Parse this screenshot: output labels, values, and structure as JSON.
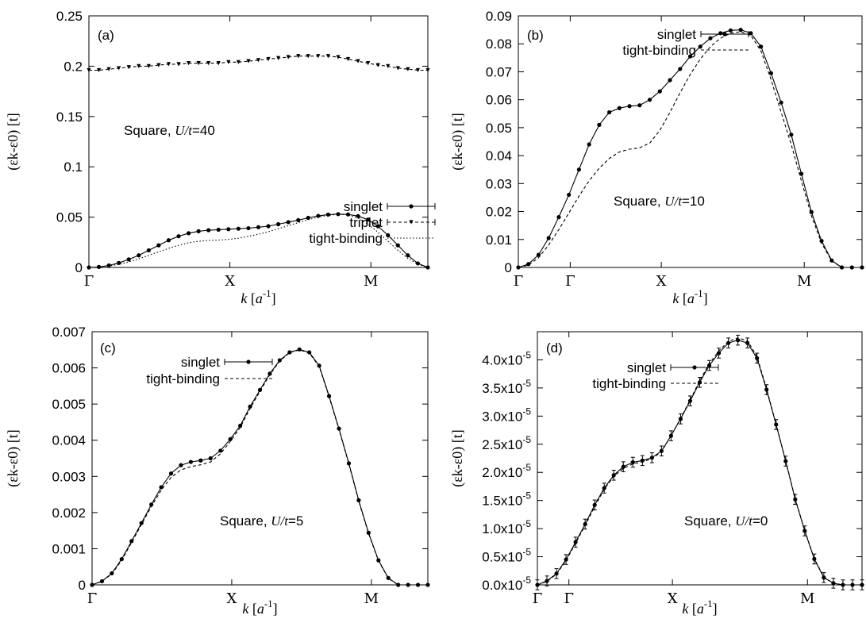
{
  "chart_data": [
    {
      "type": "line",
      "panel_label": "(a)",
      "annotation": "Square, U/t=40",
      "annotation_prefix": "Square, ",
      "annotation_var": "U/t",
      "annotation_val": "=40",
      "xlabel_var": "k",
      "xlabel_unit": "a",
      "xlabel_exp": "-1",
      "ylabel": "(εk-ε0) [t]",
      "x_ticks": [
        "Γ",
        "X",
        "M",
        "Γ"
      ],
      "y_ticks": [
        "0",
        "0.05",
        "0.1",
        "0.15",
        "0.2",
        "0.25"
      ],
      "ylim": [
        0,
        0.25
      ],
      "x": [
        0,
        0.0707,
        0.1414,
        0.2121,
        0.2828,
        0.3536,
        0.4243,
        0.495,
        0.5657,
        0.6364,
        0.7071,
        0.7778,
        0.8485,
        0.9192,
        0.9899,
        1.0607,
        1.1314,
        1.2021,
        1.2728,
        1.3435,
        1.4142,
        1.4849,
        1.5556,
        1.6263,
        1.697,
        1.7678,
        1.8385,
        1.9092,
        1.9799,
        2.0506,
        2.1213,
        2.192,
        2.2627,
        2.3335,
        2.4042
      ],
      "series": [
        {
          "name": "singlet",
          "style": "solid-circle",
          "values": [
            0.0,
            0.0005,
            0.002,
            0.0045,
            0.008,
            0.012,
            0.017,
            0.022,
            0.027,
            0.031,
            0.034,
            0.036,
            0.037,
            0.0375,
            0.038,
            0.0385,
            0.039,
            0.04,
            0.041,
            0.043,
            0.045,
            0.047,
            0.0493,
            0.0512,
            0.0525,
            0.053,
            0.0527,
            0.051,
            0.0475,
            0.041,
            0.032,
            0.022,
            0.012,
            0.004,
            0.0
          ]
        },
        {
          "name": "triplet",
          "style": "dashed-triangle",
          "values": [
            0.196,
            0.196,
            0.197,
            0.198,
            0.199,
            0.2,
            0.2,
            0.201,
            0.202,
            0.202,
            0.203,
            0.203,
            0.203,
            0.203,
            0.204,
            0.204,
            0.205,
            0.206,
            0.207,
            0.208,
            0.209,
            0.21,
            0.21,
            0.21,
            0.21,
            0.209,
            0.207,
            0.205,
            0.203,
            0.201,
            0.2,
            0.198,
            0.197,
            0.196,
            0.196
          ]
        },
        {
          "name": "tight-binding",
          "style": "dotted",
          "values": [
            0.0,
            0.0004,
            0.0015,
            0.003,
            0.0055,
            0.0085,
            0.012,
            0.0155,
            0.019,
            0.022,
            0.0245,
            0.026,
            0.0268,
            0.0272,
            0.0278,
            0.029,
            0.031,
            0.033,
            0.0355,
            0.0385,
            0.0415,
            0.0445,
            0.0475,
            0.05,
            0.0518,
            0.0528,
            0.0523,
            0.049,
            0.043,
            0.035,
            0.026,
            0.017,
            0.009,
            0.003,
            0.0
          ]
        }
      ]
    },
    {
      "type": "line",
      "panel_label": "(b)",
      "annotation": "Square, U/t=10",
      "annotation_prefix": "Square, ",
      "annotation_var": "U/t",
      "annotation_val": "=10",
      "xlabel_var": "k",
      "xlabel_unit": "a",
      "xlabel_exp": "-1",
      "ylabel": "(εk-ε0) [t]",
      "x_ticks": [
        "Γ",
        "X",
        "M",
        "Γ"
      ],
      "y_ticks": [
        "0",
        "0.01",
        "0.02",
        "0.03",
        "0.04",
        "0.05",
        "0.06",
        "0.07",
        "0.08",
        "0.09"
      ],
      "ylim": [
        0,
        0.09
      ],
      "x": [
        0,
        0.0707,
        0.1414,
        0.2121,
        0.2828,
        0.3536,
        0.4243,
        0.495,
        0.5657,
        0.6364,
        0.7071,
        0.7778,
        0.8485,
        0.9192,
        0.9899,
        1.0607,
        1.1314,
        1.2021,
        1.2728,
        1.3435,
        1.4142,
        1.4849,
        1.5556,
        1.6263,
        1.697,
        1.7678,
        1.8385,
        1.9092,
        1.9799,
        2.0506,
        2.1213,
        2.192,
        2.2627,
        2.3335,
        2.4042
      ],
      "series": [
        {
          "name": "singlet",
          "style": "solid-circle",
          "values": [
            0.0,
            0.0012,
            0.0045,
            0.0105,
            0.018,
            0.026,
            0.035,
            0.044,
            0.051,
            0.0555,
            0.057,
            0.0577,
            0.058,
            0.06,
            0.063,
            0.067,
            0.071,
            0.0755,
            0.079,
            0.082,
            0.0838,
            0.0848,
            0.085,
            0.0838,
            0.079,
            0.0695,
            0.059,
            0.0475,
            0.0335,
            0.0198,
            0.0095,
            0.0025,
            0.0,
            0.0,
            0.0
          ]
        },
        {
          "name": "tight-binding",
          "style": "dashed",
          "values": [
            0.0,
            0.0008,
            0.0035,
            0.008,
            0.0135,
            0.0195,
            0.0255,
            0.031,
            0.0355,
            0.039,
            0.0413,
            0.0423,
            0.0428,
            0.0445,
            0.049,
            0.0555,
            0.0625,
            0.069,
            0.0745,
            0.079,
            0.082,
            0.0838,
            0.0843,
            0.083,
            0.0775,
            0.0672,
            0.0555,
            0.044,
            0.031,
            0.0185,
            0.0087,
            0.0023,
            0.0,
            0.0,
            0.0
          ]
        }
      ]
    },
    {
      "type": "line",
      "panel_label": "(c)",
      "annotation": "Square, U/t=5",
      "annotation_prefix": "Square, ",
      "annotation_var": "U/t",
      "annotation_val": "=5",
      "xlabel_var": "k",
      "xlabel_unit": "a",
      "xlabel_exp": "-1",
      "ylabel": "(εk-ε0) [t]",
      "x_ticks": [
        "Γ",
        "X",
        "M",
        "Γ"
      ],
      "y_ticks": [
        "0",
        "0.001",
        "0.002",
        "0.003",
        "0.004",
        "0.005",
        "0.006",
        "0.007"
      ],
      "ylim": [
        0,
        0.007
      ],
      "x": [
        0,
        0.0707,
        0.1414,
        0.2121,
        0.2828,
        0.3536,
        0.4243,
        0.495,
        0.5657,
        0.6364,
        0.7071,
        0.7778,
        0.8485,
        0.9192,
        0.9899,
        1.0607,
        1.1314,
        1.2021,
        1.2728,
        1.3435,
        1.4142,
        1.4849,
        1.5556,
        1.6263,
        1.697,
        1.7678,
        1.8385,
        1.9092,
        1.9799,
        2.0506,
        2.1213,
        2.192,
        2.2627,
        2.3335,
        2.4042
      ],
      "series": [
        {
          "name": "singlet",
          "style": "solid-circle",
          "values": [
            0.0,
            0.0001,
            0.00032,
            0.00071,
            0.00121,
            0.00171,
            0.00222,
            0.0027,
            0.00308,
            0.00331,
            0.0034,
            0.00344,
            0.0035,
            0.00371,
            0.00403,
            0.0044,
            0.00493,
            0.00539,
            0.00584,
            0.00621,
            0.00643,
            0.00651,
            0.00643,
            0.00606,
            0.00522,
            0.00432,
            0.00336,
            0.00234,
            0.00144,
            0.00068,
            0.00019,
            0.0,
            0.0,
            0.0,
            0.0
          ]
        },
        {
          "name": "tight-binding",
          "style": "dashed",
          "values": [
            0.0,
            0.0001,
            0.0003,
            0.00068,
            0.00117,
            0.00167,
            0.00217,
            0.00262,
            0.00297,
            0.00318,
            0.00327,
            0.00332,
            0.0034,
            0.00362,
            0.00397,
            0.00435,
            0.00488,
            0.00535,
            0.00581,
            0.00619,
            0.00642,
            0.0065,
            0.00641,
            0.00604,
            0.0052,
            0.0043,
            0.00334,
            0.00232,
            0.00142,
            0.00067,
            0.00018,
            0.0,
            0.0,
            0.0,
            0.0
          ]
        }
      ]
    },
    {
      "type": "line",
      "panel_label": "(d)",
      "annotation": "Square, U/t=0",
      "annotation_prefix": "Square, ",
      "annotation_var": "U/t",
      "annotation_val": "=0",
      "xlabel_var": "k",
      "xlabel_unit": "a",
      "xlabel_exp": "-1",
      "ylabel": "(εk-ε0) [t]",
      "x_ticks": [
        "Γ",
        "X",
        "M",
        "Γ"
      ],
      "y_ticks": [
        "0.0x10-5",
        "0.5x10-5",
        "1.0x10-5",
        "1.5x10-5",
        "2.0x10-5",
        "2.5x10-5",
        "3.0x10-5",
        "3.5x10-5",
        "4.0x10-5"
      ],
      "y_ticks_mantissa": [
        "0.0x10",
        "0.5x10",
        "1.0x10",
        "1.5x10",
        "2.0x10",
        "2.5x10",
        "3.0x10",
        "3.5x10",
        "4.0x10"
      ],
      "y_ticks_exp": "-5",
      "y_tick_values": [
        0,
        0.5,
        1.0,
        1.5,
        2.0,
        2.5,
        3.0,
        3.5,
        4.0
      ],
      "y_unit": "x10^-5",
      "ylim": [
        0,
        4.5
      ],
      "x": [
        0,
        0.0707,
        0.1414,
        0.2121,
        0.2828,
        0.3536,
        0.4243,
        0.495,
        0.5657,
        0.6364,
        0.7071,
        0.7778,
        0.8485,
        0.9192,
        0.9899,
        1.0607,
        1.1314,
        1.2021,
        1.2728,
        1.3435,
        1.4142,
        1.4849,
        1.5556,
        1.6263,
        1.697,
        1.7678,
        1.8385,
        1.9092,
        1.9799,
        2.0506,
        2.1213,
        2.192,
        2.2627,
        2.3335,
        2.4042
      ],
      "series": [
        {
          "name": "singlet",
          "style": "solid-circle-errorbar",
          "values": [
            0.0,
            0.07,
            0.2,
            0.45,
            0.76,
            1.08,
            1.42,
            1.72,
            1.95,
            2.1,
            2.18,
            2.21,
            2.26,
            2.38,
            2.65,
            2.95,
            3.27,
            3.6,
            3.9,
            4.12,
            4.3,
            4.35,
            4.3,
            4.03,
            3.47,
            2.85,
            2.2,
            1.52,
            0.96,
            0.46,
            0.13,
            0.03,
            0.0,
            0.0,
            0.0
          ],
          "error": 0.06
        },
        {
          "name": "tight-binding",
          "style": "dashed",
          "values": [
            0.0,
            0.06,
            0.19,
            0.43,
            0.74,
            1.06,
            1.39,
            1.7,
            1.93,
            2.07,
            2.15,
            2.19,
            2.24,
            2.37,
            2.65,
            2.96,
            3.29,
            3.63,
            3.93,
            4.16,
            4.33,
            4.39,
            4.34,
            4.06,
            3.49,
            2.86,
            2.21,
            1.53,
            0.97,
            0.47,
            0.14,
            0.03,
            0.0,
            0.0,
            0.0
          ]
        }
      ]
    }
  ]
}
